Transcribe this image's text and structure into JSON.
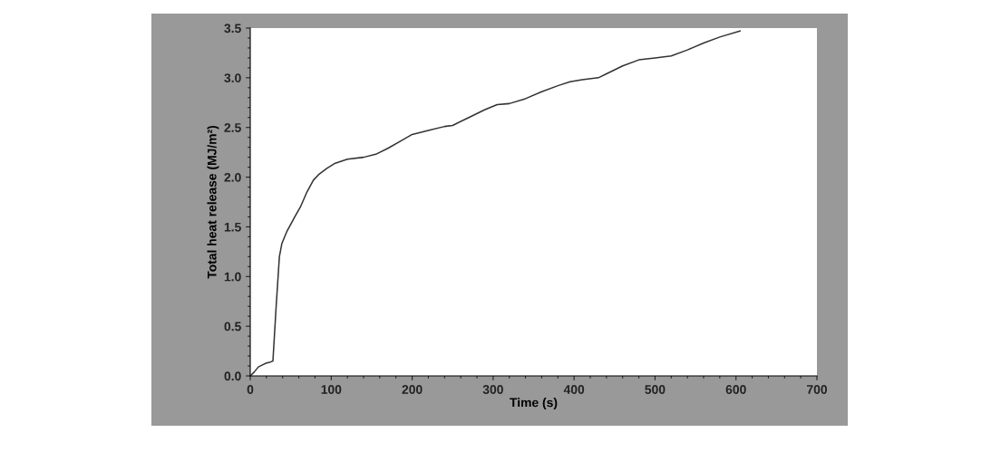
{
  "chart_data": {
    "type": "line",
    "xlabel": "Time (s)",
    "ylabel": "Total heat release (MJ/m²)",
    "x": [
      0,
      5,
      10,
      15,
      20,
      25,
      28,
      32,
      36,
      39,
      45,
      55,
      62,
      70,
      78,
      85,
      95,
      105,
      120,
      140,
      155,
      170,
      185,
      200,
      220,
      240,
      250,
      270,
      290,
      305,
      320,
      340,
      360,
      380,
      395,
      410,
      430,
      440,
      460,
      480,
      500,
      520,
      540,
      560,
      580,
      605
    ],
    "series": [
      {
        "color": "#333333",
        "values": [
          0,
          0.04,
          0.09,
          0.11,
          0.13,
          0.14,
          0.15,
          0.7,
          1.2,
          1.33,
          1.45,
          1.6,
          1.7,
          1.85,
          1.97,
          2.03,
          2.09,
          2.14,
          2.18,
          2.2,
          2.23,
          2.29,
          2.36,
          2.43,
          2.47,
          2.51,
          2.52,
          2.6,
          2.68,
          2.73,
          2.74,
          2.79,
          2.86,
          2.92,
          2.96,
          2.98,
          3.0,
          3.04,
          3.12,
          3.18,
          3.2,
          3.22,
          3.28,
          3.35,
          3.41,
          3.47
        ]
      }
    ],
    "xlim": [
      0,
      700
    ],
    "xticks": [
      0,
      100,
      200,
      300,
      400,
      500,
      600,
      700
    ],
    "ylim": [
      0,
      3.5
    ],
    "yticks": [
      {
        "value": 0,
        "label": "0.0"
      },
      {
        "value": 0.5,
        "label": "0.5"
      },
      {
        "value": 1,
        "label": "1.0"
      },
      {
        "value": 1.5,
        "label": "1.5"
      },
      {
        "value": 2,
        "label": "2.0"
      },
      {
        "value": 2.5,
        "label": "2.5"
      },
      {
        "value": 3,
        "label": "3.0"
      },
      {
        "value": 3.5,
        "label": "3.5"
      }
    ],
    "grid": false,
    "legend": false,
    "marker": "none",
    "line_style": "solid"
  }
}
